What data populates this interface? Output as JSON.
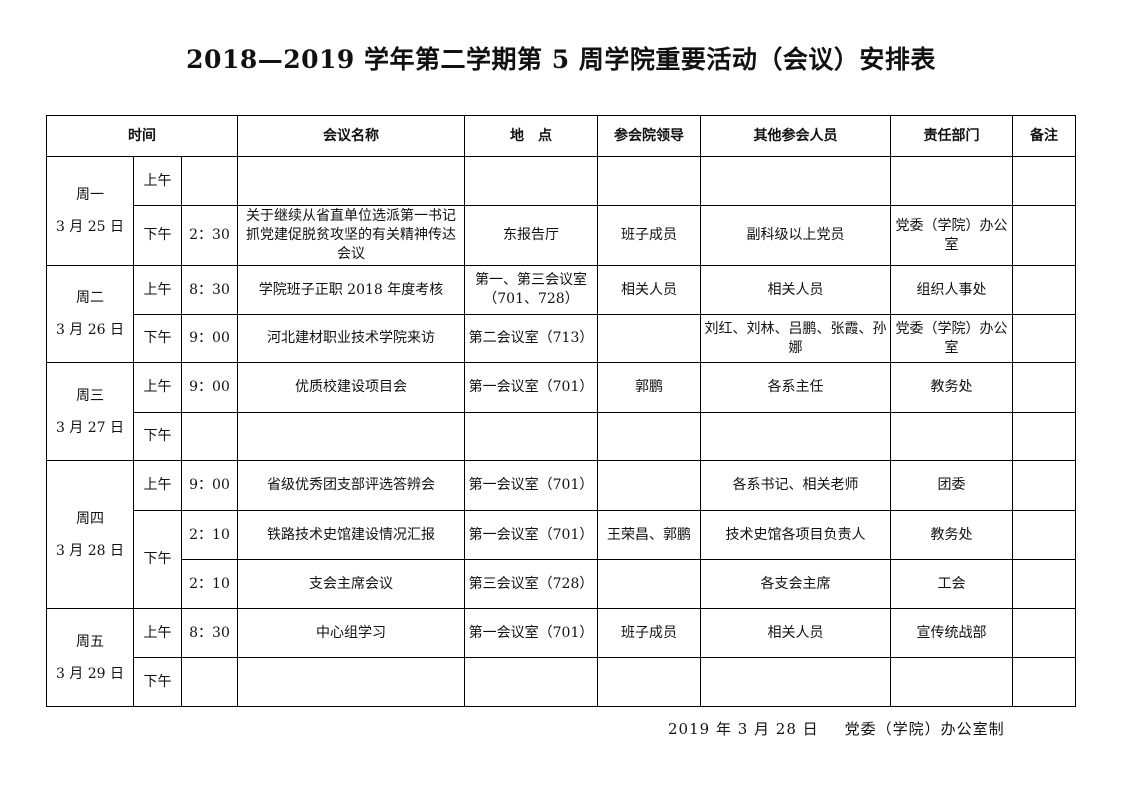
{
  "title": "2018—2019 学年第二学期第 5 周学院重要活动（会议）安排表",
  "headers": [
    "时间",
    "会议名称",
    "地　点",
    "参会院领导",
    "其他参会人员",
    "责任部门",
    "备注"
  ],
  "days": [
    {
      "day": "周一",
      "date": "3 月 25 日",
      "slots": [
        {
          "period": "上午",
          "entries": [
            {
              "time": "",
              "name": "",
              "location": "",
              "leaders": "",
              "others": "",
              "dept": "",
              "note": ""
            }
          ]
        },
        {
          "period": "下午",
          "entries": [
            {
              "time": "2：30",
              "name": "关于继续从省直单位选派第一书记抓党建促脱贫攻坚的有关精神传达会议",
              "location": "东报告厅",
              "leaders": "班子成员",
              "others": "副科级以上党员",
              "dept": "党委（学院）办公室",
              "note": ""
            }
          ]
        }
      ]
    },
    {
      "day": "周二",
      "date": "3 月 26 日",
      "slots": [
        {
          "period": "上午",
          "entries": [
            {
              "time": "8：30",
              "name": "学院班子正职 2018 年度考核",
              "location": "第一、第三会议室（701、728）",
              "leaders": "相关人员",
              "others": "相关人员",
              "dept": "组织人事处",
              "note": ""
            }
          ]
        },
        {
          "period": "下午",
          "entries": [
            {
              "time": "9：00",
              "name": "河北建材职业技术学院来访",
              "location": "第二会议室（713）",
              "leaders": "",
              "others": "刘红、刘林、吕鹏、张霞、孙娜",
              "dept": "党委（学院）办公室",
              "note": ""
            }
          ]
        }
      ]
    },
    {
      "day": "周三",
      "date": "3 月 27 日",
      "slots": [
        {
          "period": "上午",
          "entries": [
            {
              "time": "9：00",
              "name": "优质校建设项目会",
              "location": "第一会议室（701）",
              "leaders": "郭鹏",
              "others": "各系主任",
              "dept": "教务处",
              "note": ""
            }
          ]
        },
        {
          "period": "下午",
          "entries": [
            {
              "time": "",
              "name": "",
              "location": "",
              "leaders": "",
              "others": "",
              "dept": "",
              "note": ""
            }
          ]
        }
      ]
    },
    {
      "day": "周四",
      "date": "3 月 28 日",
      "slots": [
        {
          "period": "上午",
          "entries": [
            {
              "time": "9：00",
              "name": "省级优秀团支部评选答辨会",
              "location": "第一会议室（701）",
              "leaders": "",
              "others": "各系书记、相关老师",
              "dept": "团委",
              "note": ""
            }
          ]
        },
        {
          "period": "下午",
          "entries": [
            {
              "time": "2：10",
              "name": "铁路技术史馆建设情况汇报",
              "location": "第一会议室（701）",
              "leaders": "王荣昌、郭鹏",
              "others": "技术史馆各项目负责人",
              "dept": "教务处",
              "note": ""
            },
            {
              "time": "2：10",
              "name": "支会主席会议",
              "location": "第三会议室（728）",
              "leaders": "",
              "others": "各支会主席",
              "dept": "工会",
              "note": ""
            }
          ]
        }
      ]
    },
    {
      "day": "周五",
      "date": "3 月 29 日",
      "slots": [
        {
          "period": "上午",
          "entries": [
            {
              "time": "8：30",
              "name": "中心组学习",
              "location": "第一会议室（701）",
              "leaders": "班子成员",
              "others": "相关人员",
              "dept": "宣传统战部",
              "note": ""
            }
          ]
        },
        {
          "period": "下午",
          "entries": [
            {
              "time": "",
              "name": "",
              "location": "",
              "leaders": "",
              "others": "",
              "dept": "",
              "note": ""
            }
          ]
        }
      ]
    }
  ],
  "footer": {
    "date": "2019 年 3 月 28 日",
    "issuer": "党委（学院）办公室制"
  }
}
